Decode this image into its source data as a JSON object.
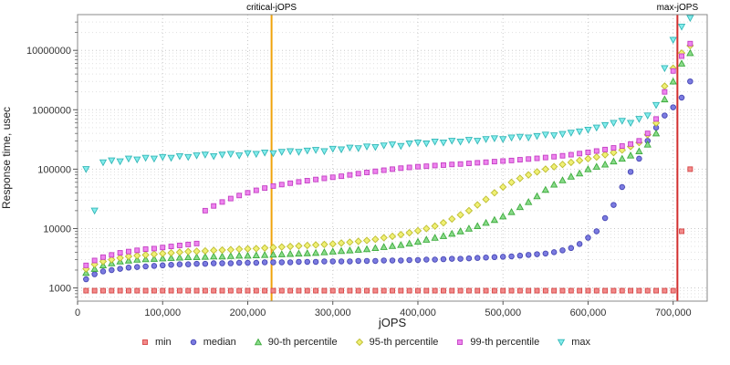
{
  "chart_data": {
    "type": "scatter",
    "xlabel": "jOPS",
    "ylabel": "Response time, usec",
    "y_scale": "log",
    "grid": true,
    "legend_position": "bottom",
    "xlim": [
      0,
      740000
    ],
    "ylim": [
      600,
      40000000
    ],
    "x_ticks": [
      0,
      100000,
      200000,
      300000,
      400000,
      500000,
      600000,
      700000
    ],
    "x_tick_labels": [
      "0",
      "100,000",
      "200,000",
      "300,000",
      "400,000",
      "500,000",
      "600,000",
      "700,000"
    ],
    "y_ticks": [
      1000,
      10000,
      100000,
      1000000,
      10000000
    ],
    "y_tick_labels": [
      "1000",
      "10000",
      "100000",
      "1000000",
      "10000000"
    ],
    "annotations": [
      {
        "label": "critical-jOPS",
        "x": 228000,
        "color": "#f0a30a"
      },
      {
        "label": "max-jOPS",
        "x": 705000,
        "color": "#d32f2f"
      }
    ],
    "x": [
      10000,
      20000,
      30000,
      40000,
      50000,
      60000,
      70000,
      80000,
      90000,
      100000,
      110000,
      120000,
      130000,
      140000,
      150000,
      160000,
      170000,
      180000,
      190000,
      200000,
      210000,
      220000,
      230000,
      240000,
      250000,
      260000,
      270000,
      280000,
      290000,
      300000,
      310000,
      320000,
      330000,
      340000,
      350000,
      360000,
      370000,
      380000,
      390000,
      400000,
      410000,
      420000,
      430000,
      440000,
      450000,
      460000,
      470000,
      480000,
      490000,
      500000,
      510000,
      520000,
      530000,
      540000,
      550000,
      560000,
      570000,
      580000,
      590000,
      600000,
      610000,
      620000,
      630000,
      640000,
      650000,
      660000,
      670000,
      680000,
      690000,
      700000,
      710000,
      720000
    ],
    "series": [
      {
        "name": "min",
        "marker": "square",
        "fill": "#f28b8b",
        "stroke": "#d64545",
        "values": [
          900,
          900,
          900,
          900,
          900,
          900,
          900,
          900,
          900,
          900,
          900,
          900,
          900,
          900,
          900,
          900,
          900,
          900,
          900,
          900,
          900,
          900,
          900,
          900,
          900,
          900,
          900,
          900,
          900,
          900,
          900,
          900,
          900,
          900,
          900,
          900,
          900,
          900,
          900,
          900,
          900,
          900,
          900,
          900,
          900,
          900,
          900,
          900,
          900,
          900,
          900,
          900,
          900,
          900,
          900,
          900,
          900,
          900,
          900,
          900,
          900,
          900,
          900,
          900,
          900,
          900,
          900,
          900,
          900,
          900,
          9000,
          100000
        ]
      },
      {
        "name": "median",
        "marker": "circle",
        "fill": "#7b7be0",
        "stroke": "#4646b4",
        "values": [
          1400,
          1700,
          1900,
          2000,
          2100,
          2200,
          2250,
          2300,
          2350,
          2400,
          2450,
          2500,
          2500,
          2550,
          2550,
          2600,
          2600,
          2600,
          2650,
          2650,
          2650,
          2700,
          2700,
          2700,
          2700,
          2750,
          2750,
          2750,
          2800,
          2800,
          2800,
          2800,
          2850,
          2850,
          2850,
          2900,
          2900,
          2900,
          2950,
          2950,
          3000,
          3000,
          3050,
          3100,
          3100,
          3150,
          3200,
          3250,
          3300,
          3350,
          3400,
          3500,
          3600,
          3700,
          3800,
          4000,
          4300,
          4700,
          5500,
          7000,
          9000,
          15000,
          25000,
          50000,
          90000,
          150000,
          300000,
          500000,
          800000,
          1100000,
          1600000,
          3000000
        ]
      },
      {
        "name": "90-th percentile",
        "marker": "triangle-up",
        "fill": "#8bdb8b",
        "stroke": "#3cab3c",
        "values": [
          1800,
          2100,
          2400,
          2600,
          2800,
          2900,
          3000,
          3050,
          3100,
          3150,
          3200,
          3250,
          3300,
          3300,
          3350,
          3400,
          3400,
          3450,
          3500,
          3500,
          3550,
          3600,
          3650,
          3700,
          3750,
          3800,
          3850,
          3900,
          4000,
          4100,
          4200,
          4300,
          4400,
          4500,
          4700,
          4900,
          5100,
          5300,
          5600,
          6000,
          6500,
          7000,
          7500,
          8200,
          9000,
          10000,
          11000,
          12500,
          14000,
          16000,
          19000,
          23000,
          28000,
          35000,
          45000,
          55000,
          65000,
          75000,
          85000,
          100000,
          110000,
          120000,
          135000,
          150000,
          170000,
          200000,
          260000,
          400000,
          1500000,
          3000000,
          6000000,
          9000000
        ]
      },
      {
        "name": "95-th percentile",
        "marker": "diamond",
        "fill": "#f0f075",
        "stroke": "#bdbd30",
        "values": [
          2100,
          2500,
          2800,
          3000,
          3200,
          3400,
          3500,
          3600,
          3700,
          3800,
          3900,
          4000,
          4100,
          4150,
          4200,
          4300,
          4350,
          4400,
          4500,
          4550,
          4600,
          4700,
          4800,
          4900,
          5000,
          5100,
          5200,
          5300,
          5400,
          5500,
          5700,
          5900,
          6100,
          6300,
          6600,
          7000,
          7400,
          7900,
          8500,
          9200,
          10000,
          11000,
          12500,
          14500,
          17000,
          20000,
          25000,
          31000,
          40000,
          50000,
          60000,
          70000,
          80000,
          90000,
          100000,
          110000,
          120000,
          130000,
          140000,
          150000,
          160000,
          175000,
          190000,
          210000,
          240000,
          280000,
          380000,
          600000,
          2500000,
          5000000,
          9000000,
          12000000
        ]
      },
      {
        "name": "99-th percentile",
        "marker": "square",
        "fill": "#ee85ee",
        "stroke": "#c33fc3",
        "values": [
          2400,
          2900,
          3300,
          3600,
          3900,
          4100,
          4300,
          4500,
          4600,
          4800,
          5000,
          5200,
          5400,
          5600,
          20000,
          24000,
          28000,
          32000,
          36000,
          40000,
          44000,
          48000,
          52000,
          55000,
          58000,
          61000,
          64000,
          67000,
          70000,
          73000,
          76000,
          80000,
          84000,
          88000,
          92000,
          96000,
          100000,
          104000,
          107000,
          110000,
          112000,
          115000,
          117000,
          120000,
          122000,
          125000,
          128000,
          131000,
          134000,
          137000,
          140000,
          144000,
          148000,
          152000,
          157000,
          162000,
          168000,
          175000,
          183000,
          192000,
          202000,
          214000,
          228000,
          245000,
          265000,
          300000,
          400000,
          700000,
          2000000,
          4500000,
          8000000,
          13000000
        ]
      },
      {
        "name": "max",
        "marker": "triangle-down",
        "fill": "#85eded",
        "stroke": "#35b7b7",
        "values": [
          100000,
          20000,
          130000,
          140000,
          135000,
          150000,
          145000,
          155000,
          150000,
          160000,
          155000,
          165000,
          160000,
          170000,
          175000,
          165000,
          175000,
          180000,
          170000,
          185000,
          180000,
          190000,
          185000,
          195000,
          200000,
          195000,
          205000,
          210000,
          200000,
          220000,
          215000,
          230000,
          225000,
          240000,
          235000,
          250000,
          260000,
          245000,
          270000,
          280000,
          270000,
          290000,
          280000,
          300000,
          290000,
          310000,
          300000,
          320000,
          330000,
          320000,
          340000,
          350000,
          340000,
          360000,
          380000,
          370000,
          390000,
          410000,
          430000,
          460000,
          500000,
          550000,
          600000,
          650000,
          600000,
          700000,
          800000,
          1200000,
          5000000,
          15000000,
          25000000,
          35000000
        ]
      }
    ]
  },
  "colors": {
    "background": "#ffffff",
    "plot_border": "#888888",
    "grid_major": "#c8c8c8",
    "grid_minor": "#e0e0e0",
    "tick": "#555555",
    "tick_label": "#333333"
  }
}
